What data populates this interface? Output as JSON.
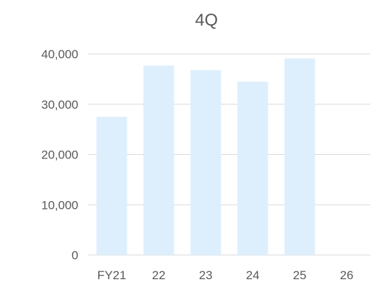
{
  "chart_data": {
    "type": "bar",
    "title": "4Q",
    "categories": [
      "FY21",
      "22",
      "23",
      "24",
      "25",
      "26"
    ],
    "values": [
      27500,
      37700,
      36800,
      34500,
      39100,
      null
    ],
    "ylim": [
      0,
      40000
    ],
    "yticks": [
      "0",
      "10,000",
      "20,000",
      "30,000",
      "40,000"
    ],
    "ytick_values": [
      0,
      10000,
      20000,
      30000,
      40000
    ],
    "grid": true,
    "legend": "none",
    "bar_color": "#ddeffc",
    "grid_color": "#d9d9d9",
    "text_color": "#595959"
  }
}
